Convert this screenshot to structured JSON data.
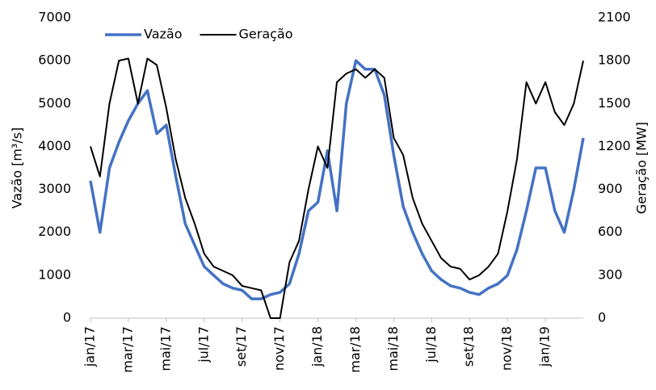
{
  "chart_data": {
    "type": "line",
    "categories": [
      "jan/17",
      null,
      null,
      null,
      "mar/17",
      null,
      null,
      null,
      "mai/17",
      null,
      null,
      null,
      "jul/17",
      null,
      null,
      null,
      "set/17",
      null,
      null,
      null,
      "nov/17",
      null,
      null,
      null,
      "jan/18",
      null,
      null,
      null,
      "mar/18",
      null,
      null,
      null,
      "mai/18",
      null,
      null,
      null,
      "jul/18",
      null,
      null,
      null,
      "set/18",
      null,
      null,
      null,
      "nov/18",
      null,
      null,
      null,
      "jan/19",
      null,
      null,
      null,
      null
    ],
    "y_label": "Vazão [m³/s]",
    "y2_label": "Geração [MW]",
    "ylim": [
      0,
      7000
    ],
    "yticks": [
      0,
      1000,
      2000,
      3000,
      4000,
      5000,
      6000,
      7000
    ],
    "y2lim": [
      0,
      2100
    ],
    "y2ticks": [
      0,
      300,
      600,
      900,
      1200,
      1500,
      1800,
      2100
    ],
    "legend": "top-left",
    "series": [
      {
        "name": "Vazão",
        "color": "#4472c4",
        "values": [
          3200,
          2000,
          3500,
          4100,
          4600,
          5000,
          5300,
          4300,
          4500,
          3300,
          2200,
          1700,
          1200,
          1000,
          800,
          700,
          650,
          450,
          450,
          550,
          600,
          800,
          1500,
          2500,
          2700,
          3900,
          2500,
          5000,
          6000,
          5800,
          5800,
          5200,
          3800,
          2600,
          2000,
          1500,
          1100,
          900,
          750,
          700,
          600,
          550,
          700,
          800,
          1000,
          1600,
          2500,
          3500,
          3500,
          2500,
          2000,
          3000,
          4200
        ]
      },
      {
        "name": "Geração",
        "color": "#000000",
        "axis": "y2",
        "values": [
          1200,
          990,
          1500,
          1800,
          1815,
          1500,
          1815,
          1770,
          1470,
          1110,
          840,
          660,
          450,
          360,
          330,
          300,
          225,
          210,
          195,
          0,
          0,
          390,
          540,
          900,
          1200,
          1050,
          1650,
          1710,
          1740,
          1680,
          1740,
          1680,
          1260,
          1140,
          840,
          660,
          540,
          420,
          360,
          345,
          270,
          300,
          360,
          450,
          750,
          1110,
          1650,
          1500,
          1650,
          1440,
          1350,
          1500,
          1800
        ]
      }
    ]
  }
}
